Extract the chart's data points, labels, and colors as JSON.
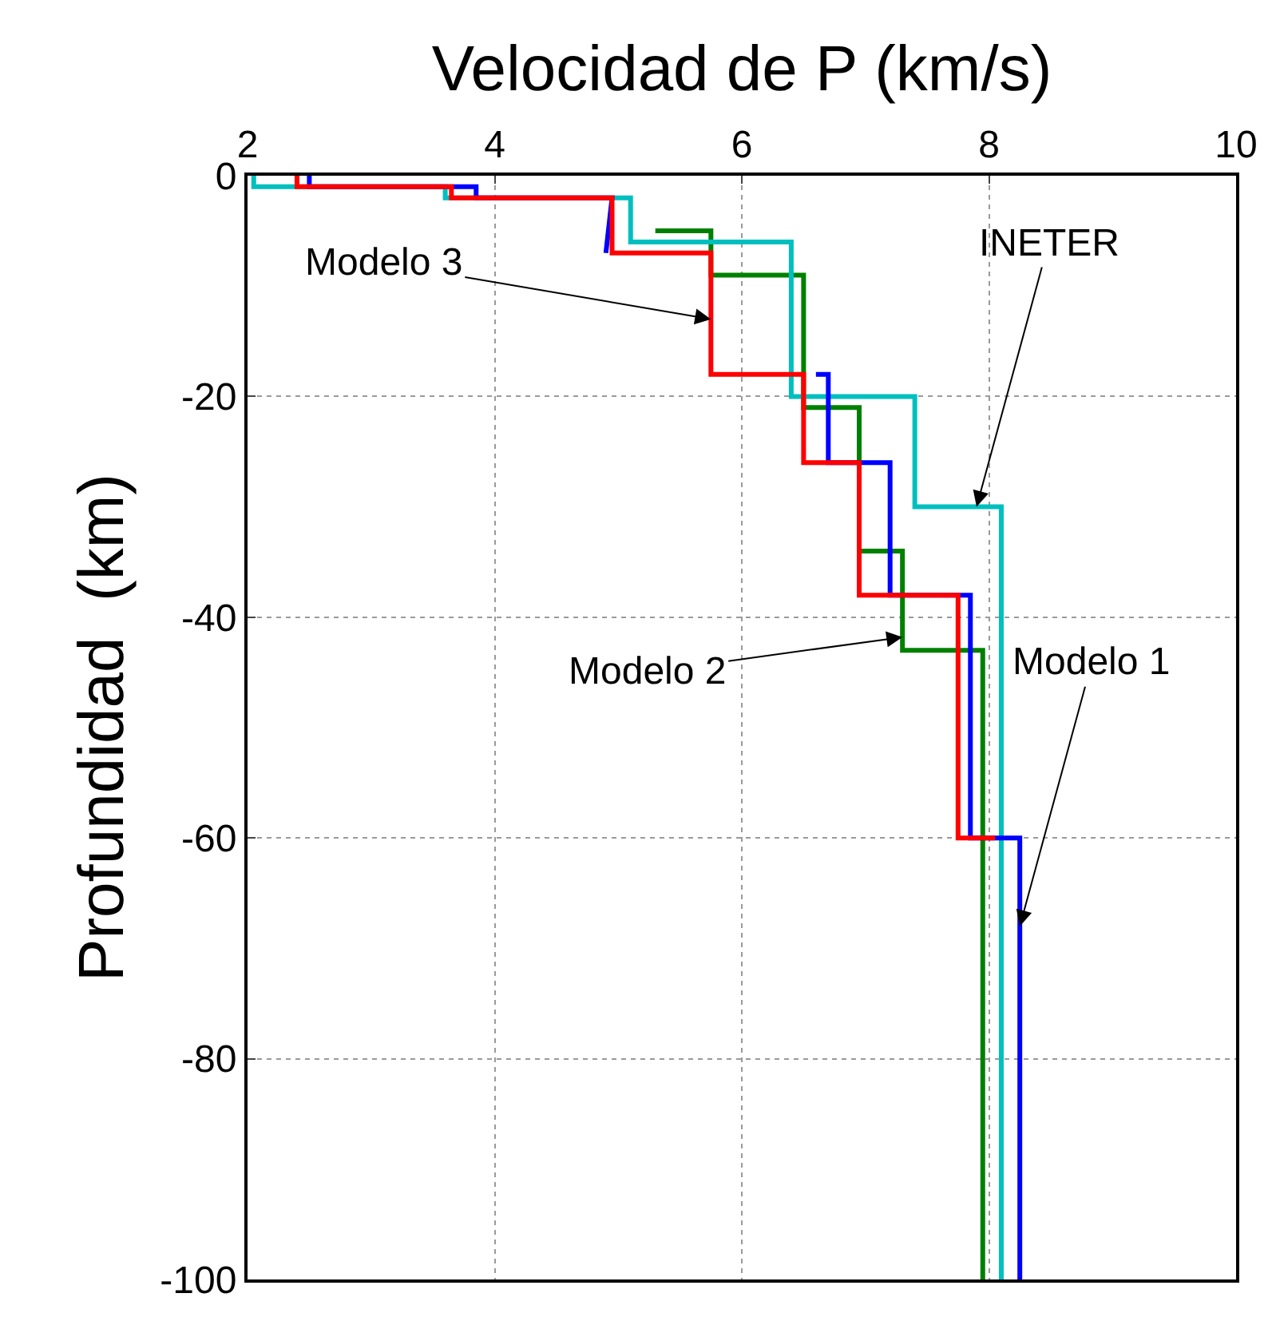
{
  "chart_data": {
    "type": "line",
    "xlabel": "Velocidad de P (km/s)",
    "ylabel": "Profundidad  (km)",
    "xlim": [
      2,
      10
    ],
    "xticks": [
      2,
      4,
      6,
      8,
      10
    ],
    "ylim": [
      -100,
      0
    ],
    "yticks": [
      0,
      -20,
      -40,
      -60,
      -80,
      -100
    ],
    "grid": true,
    "marker": "none",
    "line_style": "solid",
    "series": [
      {
        "color": "#008000",
        "x": [
          5.3,
          5.75,
          5.75,
          6.5,
          6.5,
          6.95,
          6.95,
          7.3,
          7.3,
          7.95,
          7.95
        ],
        "values": [
          -5,
          -5,
          -9,
          -9,
          -21,
          -21,
          -34,
          -34,
          -43,
          -43,
          -100
        ]
      },
      {
        "color": "#00bfbf",
        "x": [
          2.05,
          2.05,
          3.6,
          3.6,
          5.1,
          5.1,
          6.4,
          6.4,
          7.4,
          7.4,
          8.1,
          8.1
        ],
        "values": [
          0,
          -1,
          -1,
          -2,
          -2,
          -6,
          -6,
          -20,
          -20,
          -30,
          -30,
          -100
        ]
      },
      {
        "color": "#0000ff",
        "x": [
          2.5,
          2.5,
          3.85,
          3.85,
          4.95,
          4.9,
          null,
          6.6,
          6.7,
          6.7,
          7.2,
          7.2,
          7.85,
          7.85,
          8.25,
          8.25
        ],
        "values": [
          0,
          -1,
          -1,
          -2,
          -2,
          -7,
          null,
          -18,
          -18,
          -26,
          -26,
          -38,
          -38,
          -60,
          -60,
          -100
        ]
      },
      {
        "color": "#ff0000",
        "x": [
          2.4,
          2.4,
          3.65,
          3.65,
          4.95,
          4.95,
          5.75,
          5.75,
          6.5,
          6.5,
          6.95,
          6.95,
          7.75,
          7.75,
          8.05
        ],
        "values": [
          0,
          -1,
          -1,
          -2,
          -2,
          -7,
          -7,
          -18,
          -18,
          -26,
          -26,
          -38,
          -38,
          -60,
          -60
        ]
      }
    ],
    "annotations": [
      {
        "text": "INETER",
        "x": 7.9,
        "y": -30
      },
      {
        "text": "Modelo 3",
        "x": 5.75,
        "y": -13
      },
      {
        "text": "Modelo 2",
        "x": 7.3,
        "y": -41.8
      },
      {
        "text": "Modelo 1",
        "x": 8.25,
        "y": -68
      }
    ]
  }
}
